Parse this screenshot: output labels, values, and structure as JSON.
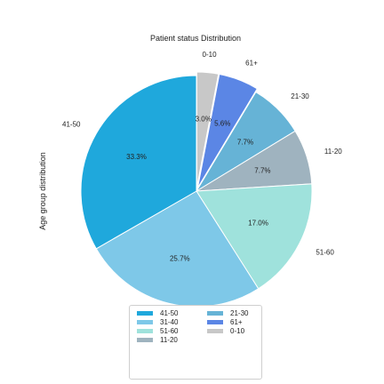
{
  "chart_data": {
    "type": "pie",
    "title": "Patient status Distribution",
    "ylabel": "Age group distribution",
    "start_angle_deg": 90,
    "direction": "clockwise",
    "legend_position": "bottom",
    "slices": [
      {
        "label": "0-10",
        "value": 3.0,
        "pct_label": "3.0%",
        "color": "#c8c8c8",
        "exploded": true
      },
      {
        "label": "61+",
        "value": 5.6,
        "pct_label": "5.6%",
        "color": "#5b86e5",
        "exploded": true
      },
      {
        "label": "21-30",
        "value": 7.7,
        "pct_label": "7.7%",
        "color": "#66b3d6",
        "exploded": false
      },
      {
        "label": "11-20",
        "value": 7.7,
        "pct_label": "7.7%",
        "color": "#9fb3bf",
        "exploded": false
      },
      {
        "label": "51-60",
        "value": 17.0,
        "pct_label": "17.0%",
        "color": "#9fe2dc",
        "exploded": false
      },
      {
        "label": "31-40",
        "value": 25.7,
        "pct_label": "25.7%",
        "color": "#7ec8e8",
        "exploded": false
      },
      {
        "label": "41-50",
        "value": 33.3,
        "pct_label": "33.3%",
        "color": "#1fa8dc",
        "exploded": false
      }
    ],
    "legend": [
      "41-50",
      "31-40",
      "51-60",
      "11-20",
      "21-30",
      "61+",
      "0-10"
    ]
  }
}
